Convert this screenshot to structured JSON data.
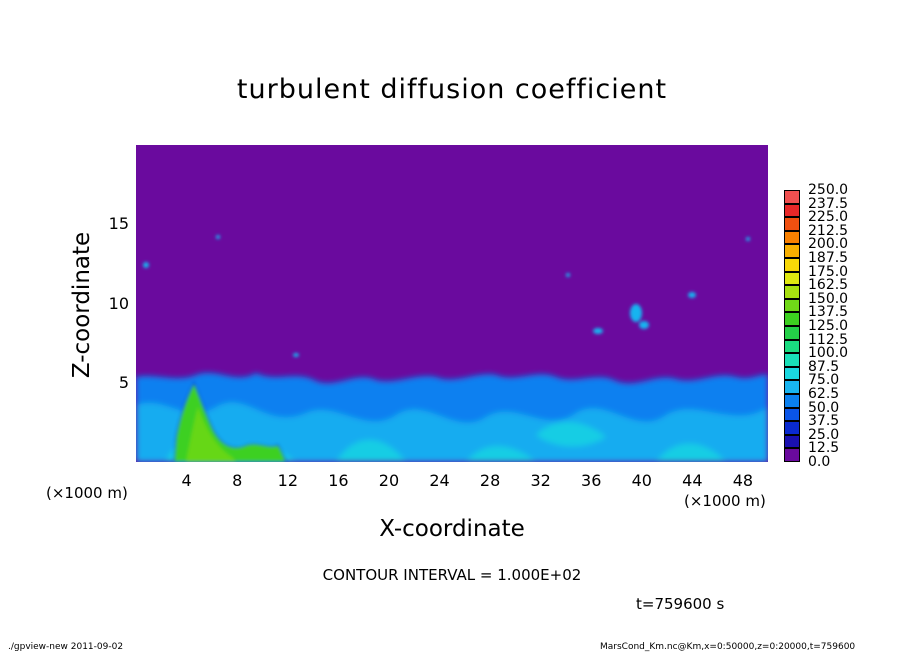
{
  "chart_data": {
    "type": "heatmap",
    "title": "turbulent diffusion coefficient",
    "xlabel": "X-coordinate",
    "ylabel": "Z-coordinate",
    "x_unit_left": "(×1000 m)",
    "x_unit_right": "(×1000 m)",
    "xlim": [
      0,
      50
    ],
    "ylim": [
      0,
      20
    ],
    "x_ticks": [
      "4",
      "8",
      "12",
      "16",
      "20",
      "24",
      "28",
      "32",
      "36",
      "40",
      "44",
      "48"
    ],
    "y_ticks": [
      "5",
      "10",
      "15"
    ],
    "colorbar": {
      "levels": [
        "0.0",
        "12.5",
        "25.0",
        "37.5",
        "50.0",
        "62.5",
        "75.0",
        "87.5",
        "100.0",
        "112.5",
        "125.0",
        "137.5",
        "150.0",
        "162.5",
        "175.0",
        "187.5",
        "200.0",
        "212.5",
        "225.0",
        "237.5",
        "250.0"
      ],
      "colors": [
        "#6a0a9e",
        "#1a10b0",
        "#0a2ad0",
        "#0a55e8",
        "#0a80f0",
        "#18b4f0",
        "#1ad8e0",
        "#19e0b8",
        "#1adc80",
        "#24d048",
        "#3cd020",
        "#70d818",
        "#a8e010",
        "#e0e810",
        "#f8d808",
        "#f8b000",
        "#f88000",
        "#f05010",
        "#e82828",
        "#f05050",
        "#f88888"
      ]
    },
    "field_summary": {
      "background_value": 0.0,
      "boundary_layer_top_km": 5.5,
      "boundary_layer_values": [
        25.0,
        87.5
      ],
      "peak_region_x_km": [
        3,
        12
      ],
      "peak_region_values": [
        100.0,
        137.5
      ]
    }
  },
  "contour_interval": "CONTOUR INTERVAL = 1.000E+02",
  "time_label": "t=759600  s",
  "footer_left": "./gpview-new   2011-09-02",
  "footer_right": "MarsCond_Km.nc@Km,x=0:50000,z=0:20000,t=759600"
}
